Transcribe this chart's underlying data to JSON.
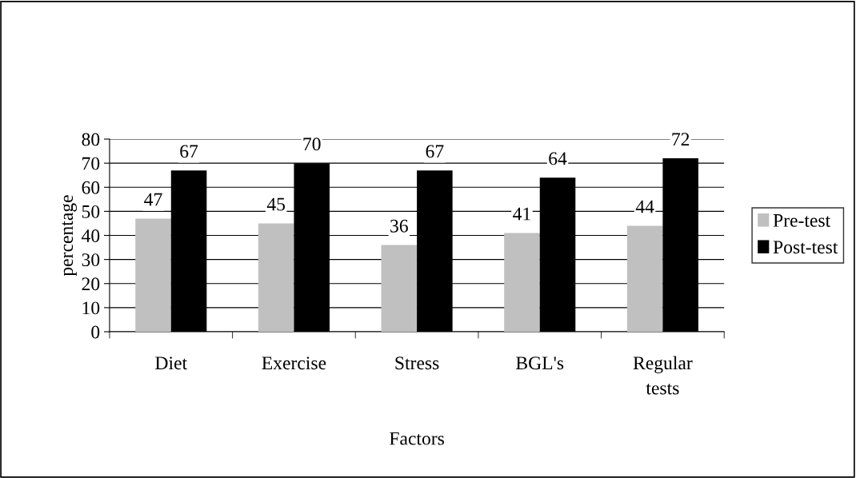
{
  "chart_data": {
    "type": "bar",
    "xlabel": "Factors",
    "ylabel": "percentage",
    "categories": [
      "Diet",
      "Exercise",
      "Stress",
      "BGL's",
      "Regular\ntests"
    ],
    "series": [
      {
        "name": "Pre-test",
        "color": "#c0c0c0",
        "values": [
          47,
          45,
          36,
          41,
          44
        ]
      },
      {
        "name": "Post-test",
        "color": "#000000",
        "values": [
          67,
          70,
          67,
          64,
          72
        ]
      }
    ],
    "ylim": [
      0,
      80
    ],
    "yticks": [
      0,
      10,
      20,
      30,
      40,
      50,
      60,
      70,
      80
    ],
    "grid": "y",
    "legend": "right",
    "data_labels": true
  }
}
